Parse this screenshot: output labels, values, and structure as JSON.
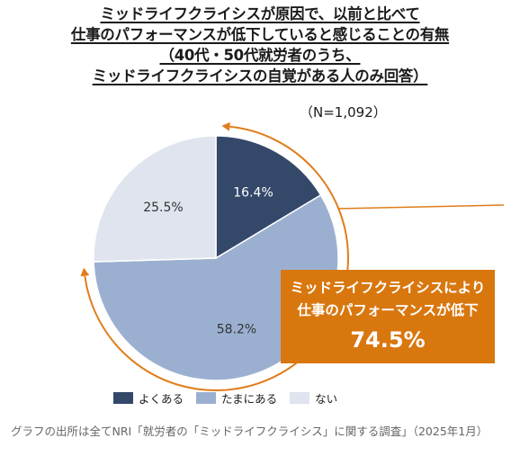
{
  "title": {
    "line1": "ミッドライフクライシスが原因で、以前と比べて",
    "line2": "仕事のパフォーマンスが低下していると感じることの有無",
    "line3": "（40代・50代就労者のうち、",
    "line4": "ミッドライフクライシスの自覚がある人のみ回答）"
  },
  "sample_size": "（N=1,092）",
  "callout": {
    "line1": "ミッドライフクライシスにより",
    "line2": "仕事のパフォーマンスが低下",
    "value": "74.5%"
  },
  "source": "グラフの出所は全てNRI「就労者の「ミッドライフクライシス」に関する調査」（2025年1月）",
  "colors": {
    "often": "#34486a",
    "sometimes": "#9bb0d1",
    "never": "#dfe4ee",
    "accent": "#e07d1b",
    "callout_bg": "#d9770f"
  },
  "chart_data": {
    "type": "pie",
    "categories": [
      "よくある",
      "たまにある",
      "ない"
    ],
    "values": [
      16.4,
      58.2,
      25.5
    ],
    "labels": [
      "16.4%",
      "58.2%",
      "25.5%"
    ],
    "start": "12 o'clock, clockwise",
    "legend_position": "bottom"
  }
}
